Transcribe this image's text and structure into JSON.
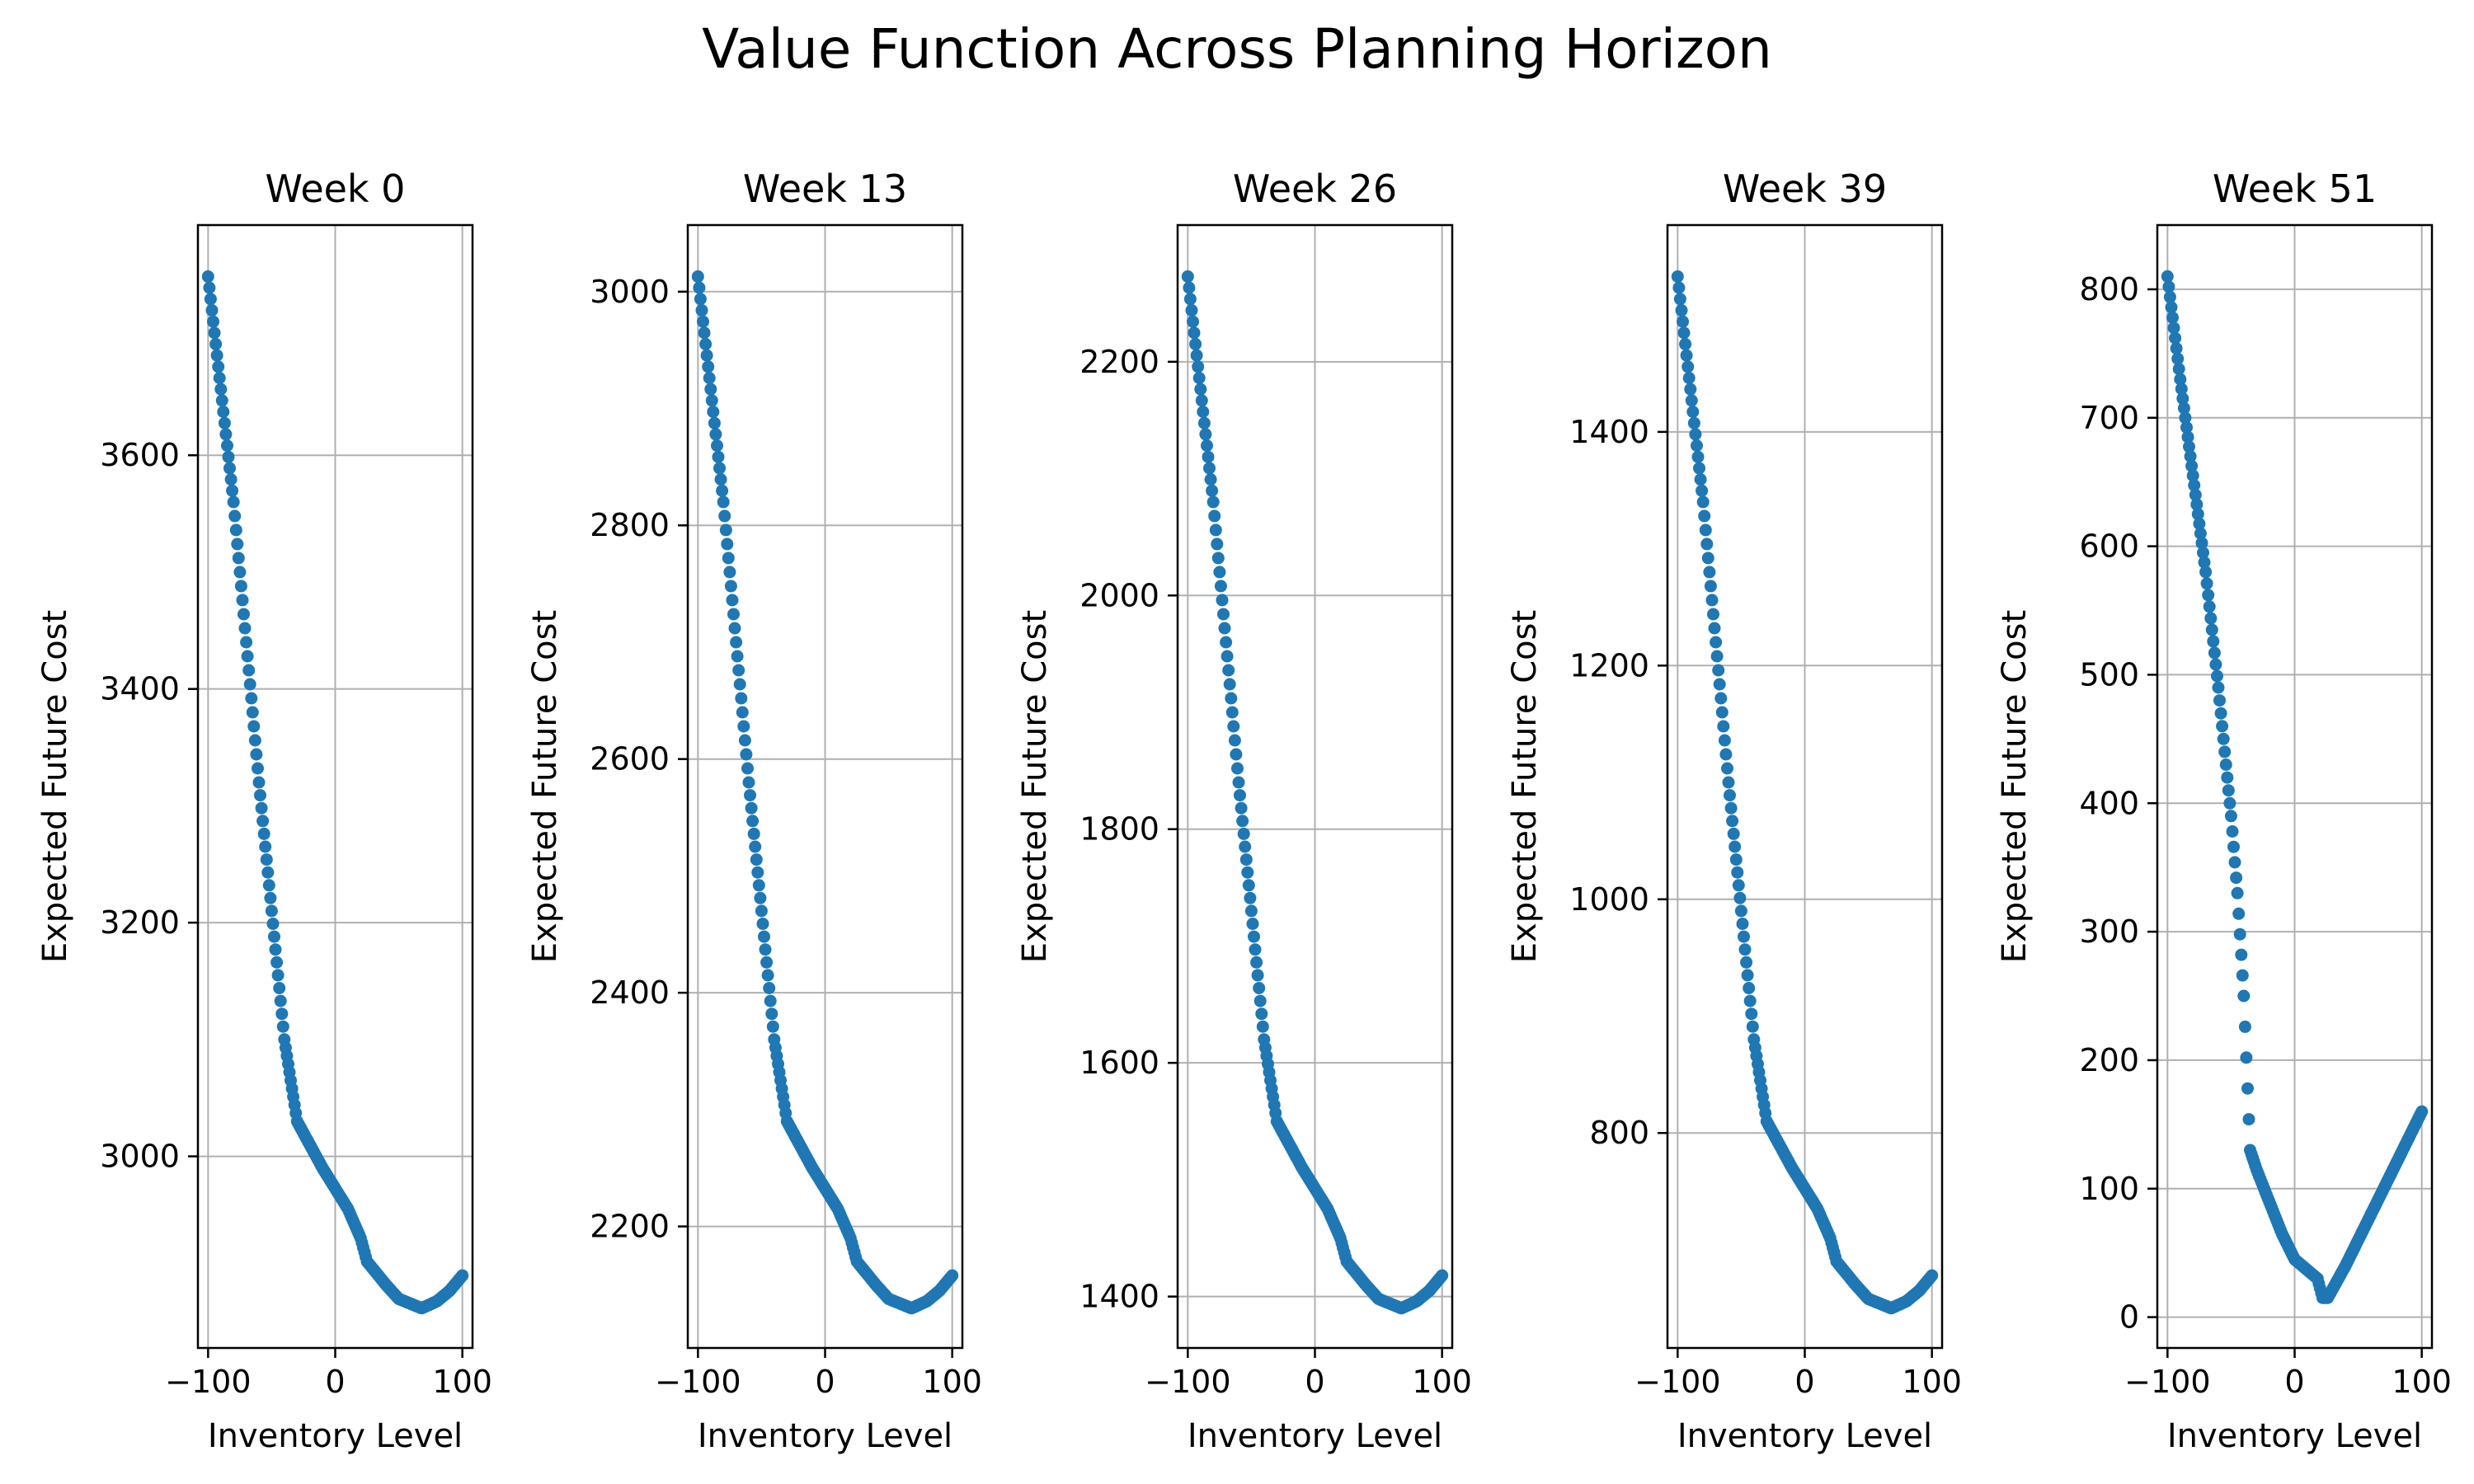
{
  "figure": {
    "title": "Value Function Across Planning Horizon"
  },
  "chart_data": [
    {
      "type": "scatter",
      "title": "Week 0",
      "xlabel": "Inventory Level",
      "ylabel": "Expected Future Cost",
      "xlim": [
        -108,
        108
      ],
      "ylim": [
        2836,
        3797
      ],
      "xticks": [
        -100,
        0,
        100
      ],
      "yticks": [
        3000,
        3200,
        3400,
        3600
      ],
      "grid": true,
      "color": "#1f77b4",
      "key_points": [
        [
          -100,
          3753
        ],
        [
          -80,
          3560
        ],
        [
          -60,
          3320
        ],
        [
          -40,
          3100
        ],
        [
          -30,
          3030
        ],
        [
          -10,
          2990
        ],
        [
          10,
          2955
        ],
        [
          20,
          2930
        ],
        [
          25,
          2910
        ],
        [
          40,
          2890
        ],
        [
          50,
          2878
        ],
        [
          68,
          2870
        ],
        [
          80,
          2876
        ],
        [
          90,
          2885
        ],
        [
          100,
          2898
        ]
      ]
    },
    {
      "type": "scatter",
      "title": "Week 13",
      "xlabel": "Inventory Level",
      "ylabel": "Expected Future Cost",
      "xlim": [
        -108,
        108
      ],
      "ylim": [
        2096,
        3057
      ],
      "xticks": [
        -100,
        0,
        100
      ],
      "yticks": [
        2200,
        2400,
        2600,
        2800,
        3000
      ],
      "grid": true,
      "color": "#1f77b4",
      "key_points": [
        [
          -100,
          3013
        ],
        [
          -80,
          2820
        ],
        [
          -60,
          2580
        ],
        [
          -40,
          2360
        ],
        [
          -30,
          2290
        ],
        [
          -10,
          2250
        ],
        [
          10,
          2215
        ],
        [
          20,
          2190
        ],
        [
          25,
          2170
        ],
        [
          40,
          2150
        ],
        [
          50,
          2138
        ],
        [
          68,
          2130
        ],
        [
          80,
          2136
        ],
        [
          90,
          2145
        ],
        [
          100,
          2158
        ]
      ]
    },
    {
      "type": "scatter",
      "title": "Week 26",
      "xlabel": "Inventory Level",
      "ylabel": "Expected Future Cost",
      "xlim": [
        -108,
        108
      ],
      "ylim": [
        1356,
        2317
      ],
      "xticks": [
        -100,
        0,
        100
      ],
      "yticks": [
        1400,
        1600,
        1800,
        2000,
        2200
      ],
      "grid": true,
      "color": "#1f77b4",
      "key_points": [
        [
          -100,
          2273
        ],
        [
          -80,
          2080
        ],
        [
          -60,
          1840
        ],
        [
          -40,
          1620
        ],
        [
          -30,
          1550
        ],
        [
          -10,
          1510
        ],
        [
          10,
          1475
        ],
        [
          20,
          1450
        ],
        [
          25,
          1430
        ],
        [
          40,
          1410
        ],
        [
          50,
          1398
        ],
        [
          68,
          1390
        ],
        [
          80,
          1396
        ],
        [
          90,
          1405
        ],
        [
          100,
          1418
        ]
      ]
    },
    {
      "type": "scatter",
      "title": "Week 39",
      "xlabel": "Inventory Level",
      "ylabel": "Expected Future Cost",
      "xlim": [
        -108,
        108
      ],
      "ylim": [
        616,
        1577
      ],
      "xticks": [
        -100,
        0,
        100
      ],
      "yticks": [
        800,
        1000,
        1200,
        1400
      ],
      "grid": true,
      "color": "#1f77b4",
      "key_points": [
        [
          -100,
          1533
        ],
        [
          -80,
          1340
        ],
        [
          -60,
          1100
        ],
        [
          -40,
          880
        ],
        [
          -30,
          810
        ],
        [
          -10,
          770
        ],
        [
          10,
          735
        ],
        [
          20,
          710
        ],
        [
          25,
          690
        ],
        [
          40,
          670
        ],
        [
          50,
          658
        ],
        [
          68,
          650
        ],
        [
          80,
          656
        ],
        [
          90,
          665
        ],
        [
          100,
          678
        ]
      ]
    },
    {
      "type": "scatter",
      "title": "Week 51",
      "xlabel": "Inventory Level",
      "ylabel": "Expected Future Cost",
      "xlim": [
        -108,
        108
      ],
      "ylim": [
        -24,
        850
      ],
      "xticks": [
        -100,
        0,
        100
      ],
      "yticks": [
        0,
        100,
        200,
        300,
        400,
        500,
        600,
        700,
        800
      ],
      "grid": true,
      "color": "#1f77b4",
      "key_points": [
        [
          -100,
          810
        ],
        [
          -90,
          730
        ],
        [
          -80,
          655
        ],
        [
          -70,
          580
        ],
        [
          -60,
          490
        ],
        [
          -50,
          390
        ],
        [
          -45,
          330
        ],
        [
          -40,
          250
        ],
        [
          -35,
          130
        ],
        [
          -30,
          115
        ],
        [
          -20,
          90
        ],
        [
          -10,
          65
        ],
        [
          0,
          45
        ],
        [
          18,
          30
        ],
        [
          22,
          15
        ],
        [
          26,
          15
        ],
        [
          40,
          40
        ],
        [
          60,
          80
        ],
        [
          80,
          120
        ],
        [
          100,
          160
        ]
      ]
    }
  ]
}
